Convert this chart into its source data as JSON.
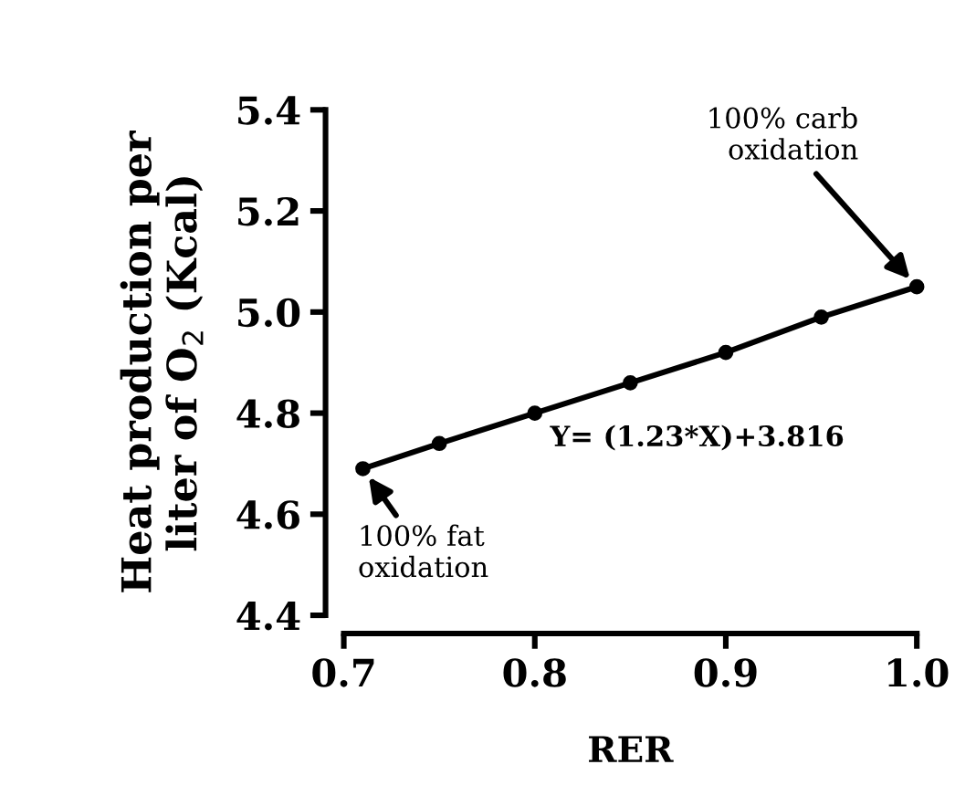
{
  "chart_data": {
    "type": "line",
    "xlabel": "RER",
    "ylabel": "Heat production per\nliter of O$_{2}$ (Kcal)",
    "x": [
      0.71,
      0.75,
      0.8,
      0.85,
      0.9,
      0.95,
      1.0
    ],
    "series": [
      {
        "color": "#000000",
        "values": [
          4.69,
          4.74,
          4.8,
          4.86,
          4.92,
          4.99,
          5.05
        ]
      }
    ],
    "marker": "circle",
    "line_style": "solid",
    "grid": false,
    "legend": false,
    "xlim": [
      0.7,
      1.0
    ],
    "xticks": [
      0.7,
      0.8,
      0.9,
      {
        "value": 1.0,
        "label": "1.0"
      }
    ],
    "ylim": [
      4.4,
      5.4
    ],
    "yticks": [
      4.4,
      4.6,
      4.8,
      {
        "value": 5.0,
        "label": "5.0"
      },
      5.2,
      5.4
    ],
    "annotations": [
      {
        "text": "100% carb\noxidation",
        "x": 1.0,
        "y": 5.05
      },
      {
        "text": "100% fat\noxidation",
        "x": 0.71,
        "y": 4.69
      },
      "Y= (1.23*X)+3.816"
    ]
  }
}
